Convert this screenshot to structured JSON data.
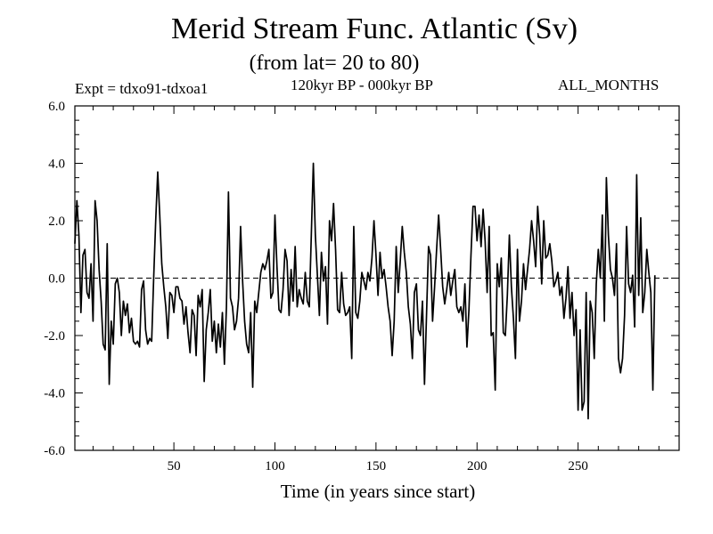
{
  "chart_data": {
    "type": "line",
    "title": "Merid Stream Func. Atlantic (Sv)",
    "subtitle": "(from lat= 20 to 80)",
    "experiment_label": "Expt = tdxo91-tdxoa1",
    "period_label": "120kyr BP - 000kyr BP",
    "months_label": "ALL_MONTHS",
    "xlabel": "Time (in years since start)",
    "ylabel": "",
    "xlim": [
      1,
      300
    ],
    "ylim": [
      -6.0,
      6.0
    ],
    "x_ticks": [
      50,
      100,
      150,
      200,
      250
    ],
    "x_tick_labels": [
      "50",
      "100",
      "150",
      "200",
      "250"
    ],
    "y_ticks": [
      -6.0,
      -4.0,
      -2.0,
      0.0,
      2.0,
      4.0,
      6.0
    ],
    "y_tick_labels": [
      "-6.0",
      "-4.0",
      "-2.0",
      "0.0",
      "2.0",
      "4.0",
      "6.0"
    ],
    "reference_line": 0.0,
    "series": [
      {
        "name": "Merid Stream Func. Atlantic",
        "x_start": 1,
        "x_step": 1,
        "values": [
          1.2,
          2.7,
          1.5,
          -1.2,
          0.8,
          1.0,
          -0.5,
          -0.7,
          0.5,
          -1.5,
          2.7,
          2.0,
          0.3,
          -0.8,
          -2.3,
          -2.5,
          1.2,
          -3.7,
          -1.5,
          -2.3,
          -0.2,
          0.0,
          -0.5,
          -2.0,
          -0.8,
          -1.3,
          -0.9,
          -1.9,
          -1.4,
          -2.2,
          -2.3,
          -2.2,
          -2.4,
          -0.4,
          -0.1,
          -1.8,
          -2.3,
          -2.1,
          -2.2,
          0.0,
          2.0,
          3.7,
          2.2,
          0.5,
          -0.3,
          -1.0,
          -2.1,
          -0.5,
          -0.6,
          -1.2,
          -0.3,
          -0.3,
          -0.7,
          -0.8,
          -1.6,
          -1.0,
          -1.9,
          -2.6,
          -1.1,
          -1.3,
          -2.7,
          -0.6,
          -1.0,
          -0.4,
          -3.6,
          -1.8,
          -1.2,
          -0.4,
          -2.2,
          -1.5,
          -2.6,
          -1.6,
          -2.4,
          -1.2,
          -3.0,
          -1.0,
          3.0,
          -0.7,
          -1.0,
          -1.8,
          -1.5,
          -0.7,
          1.8,
          -0.1,
          -1.5,
          -2.3,
          -2.6,
          -1.2,
          -3.8,
          -0.8,
          -1.2,
          -0.5,
          0.2,
          0.5,
          0.3,
          0.6,
          1.0,
          -0.7,
          -0.5,
          2.2,
          0.4,
          -1.1,
          -1.2,
          -0.4,
          1.0,
          0.6,
          -1.3,
          0.3,
          -0.8,
          1.1,
          -1.0,
          -0.4,
          -0.7,
          -0.9,
          0.2,
          -0.8,
          -1.0,
          1.5,
          4.0,
          1.5,
          0.1,
          -1.3,
          0.9,
          -0.1,
          0.4,
          -1.6,
          2.0,
          1.3,
          2.6,
          1.0,
          -1.1,
          -1.2,
          0.2,
          -0.9,
          -1.3,
          -1.2,
          -1.0,
          -2.8,
          1.8,
          -1.2,
          -1.4,
          -0.8,
          0.2,
          -0.1,
          -0.4,
          0.2,
          -0.1,
          0.7,
          2.0,
          0.8,
          -0.6,
          0.9,
          0.0,
          0.3,
          -0.3,
          -1.0,
          -1.5,
          -2.7,
          -1.5,
          1.1,
          -0.5,
          0.6,
          1.8,
          0.9,
          0.2,
          -1.0,
          -1.6,
          -2.8,
          -0.5,
          -0.2,
          -1.8,
          -2.0,
          -0.8,
          -3.7,
          -1.3,
          1.1,
          0.8,
          -1.5,
          -0.3,
          1.0,
          2.2,
          1.0,
          -0.3,
          -0.9,
          -0.4,
          0.2,
          -0.6,
          -0.1,
          0.3,
          -1.0,
          -1.2,
          -1.0,
          -1.5,
          -0.2,
          -2.4,
          -1.1,
          0.8,
          2.5,
          2.5,
          1.3,
          2.2,
          1.1,
          2.4,
          1.3,
          -0.5,
          1.8,
          -2.0,
          -1.9,
          -3.9,
          0.5,
          -0.3,
          0.7,
          -1.9,
          -2.0,
          -0.6,
          1.5,
          -0.3,
          -1.4,
          -2.8,
          1.0,
          -1.5,
          -0.8,
          0.5,
          -0.4,
          0.3,
          1.0,
          2.0,
          1.3,
          0.4,
          2.5,
          1.5,
          -0.2,
          2.0,
          0.7,
          0.8,
          1.2,
          0.6,
          -0.3,
          -0.1,
          0.2,
          -0.6,
          -0.3,
          -1.4,
          -0.7,
          0.4,
          -1.4,
          -0.5,
          -2.0,
          -1.1,
          -4.6,
          -1.8,
          -4.6,
          -4.3,
          -0.5,
          -4.9,
          -0.8,
          -1.2,
          -2.8,
          -0.2,
          1.0,
          0.0,
          2.2,
          -1.5,
          3.5,
          1.5,
          0.3,
          0.0,
          -0.6,
          1.2,
          -2.8,
          -3.3,
          -2.8,
          -1.3,
          1.8,
          -0.2,
          -0.5,
          0.1,
          -1.7,
          3.6,
          -0.6,
          2.1,
          -1.2,
          -0.5,
          1.0,
          0.2,
          -0.5,
          -3.9,
          0.1
        ]
      }
    ]
  }
}
